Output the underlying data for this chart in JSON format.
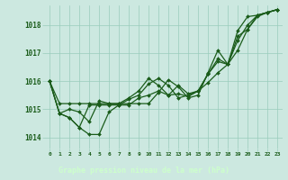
{
  "title": "Graphe pression niveau de la mer (hPa)",
  "bg_color": "#cce8e0",
  "label_bg_color": "#2d6b2d",
  "grid_color": "#99ccbb",
  "line_color": "#1a5c1a",
  "marker_color": "#1a5c1a",
  "xlim": [
    -0.5,
    23.5
  ],
  "ylim": [
    1013.6,
    1018.7
  ],
  "xtick_labels": [
    "0",
    "1",
    "2",
    "3",
    "4",
    "5",
    "6",
    "7",
    "8",
    "9",
    "10",
    "11",
    "12",
    "13",
    "14",
    "15",
    "16",
    "17",
    "18",
    "19",
    "20",
    "21",
    "22",
    "23"
  ],
  "yticks": [
    1014,
    1015,
    1016,
    1017,
    1018
  ],
  "series": [
    [
      1016.0,
      1015.2,
      1015.2,
      1015.2,
      1015.2,
      1015.2,
      1015.2,
      1015.2,
      1015.2,
      1015.2,
      1015.2,
      1015.6,
      1016.05,
      1015.8,
      1015.4,
      1015.5,
      1016.3,
      1017.1,
      1016.6,
      1017.8,
      1018.3,
      1018.35,
      1018.45,
      1018.55
    ],
    [
      1016.0,
      1014.85,
      1014.7,
      1014.35,
      1014.1,
      1014.1,
      1014.9,
      1015.15,
      1015.15,
      1015.4,
      1015.5,
      1015.65,
      1015.5,
      1015.85,
      1015.55,
      1015.65,
      1015.95,
      1016.3,
      1016.6,
      1017.1,
      1017.85,
      1018.3,
      1018.45,
      1018.55
    ],
    [
      1016.0,
      1014.85,
      1014.7,
      1014.35,
      1015.15,
      1015.15,
      1015.15,
      1015.15,
      1015.35,
      1015.5,
      1015.9,
      1016.1,
      1015.85,
      1015.4,
      1015.5,
      1015.65,
      1016.25,
      1016.8,
      1016.6,
      1017.6,
      1017.85,
      1018.35,
      1018.45,
      1018.55
    ],
    [
      1016.0,
      1014.85,
      1015.0,
      1014.9,
      1014.55,
      1015.3,
      1015.2,
      1015.2,
      1015.4,
      1015.65,
      1016.1,
      1015.85,
      1015.5,
      1015.55,
      1015.45,
      1015.65,
      1016.25,
      1016.7,
      1016.6,
      1017.45,
      1018.0,
      1018.35,
      1018.45,
      1018.55
    ]
  ]
}
